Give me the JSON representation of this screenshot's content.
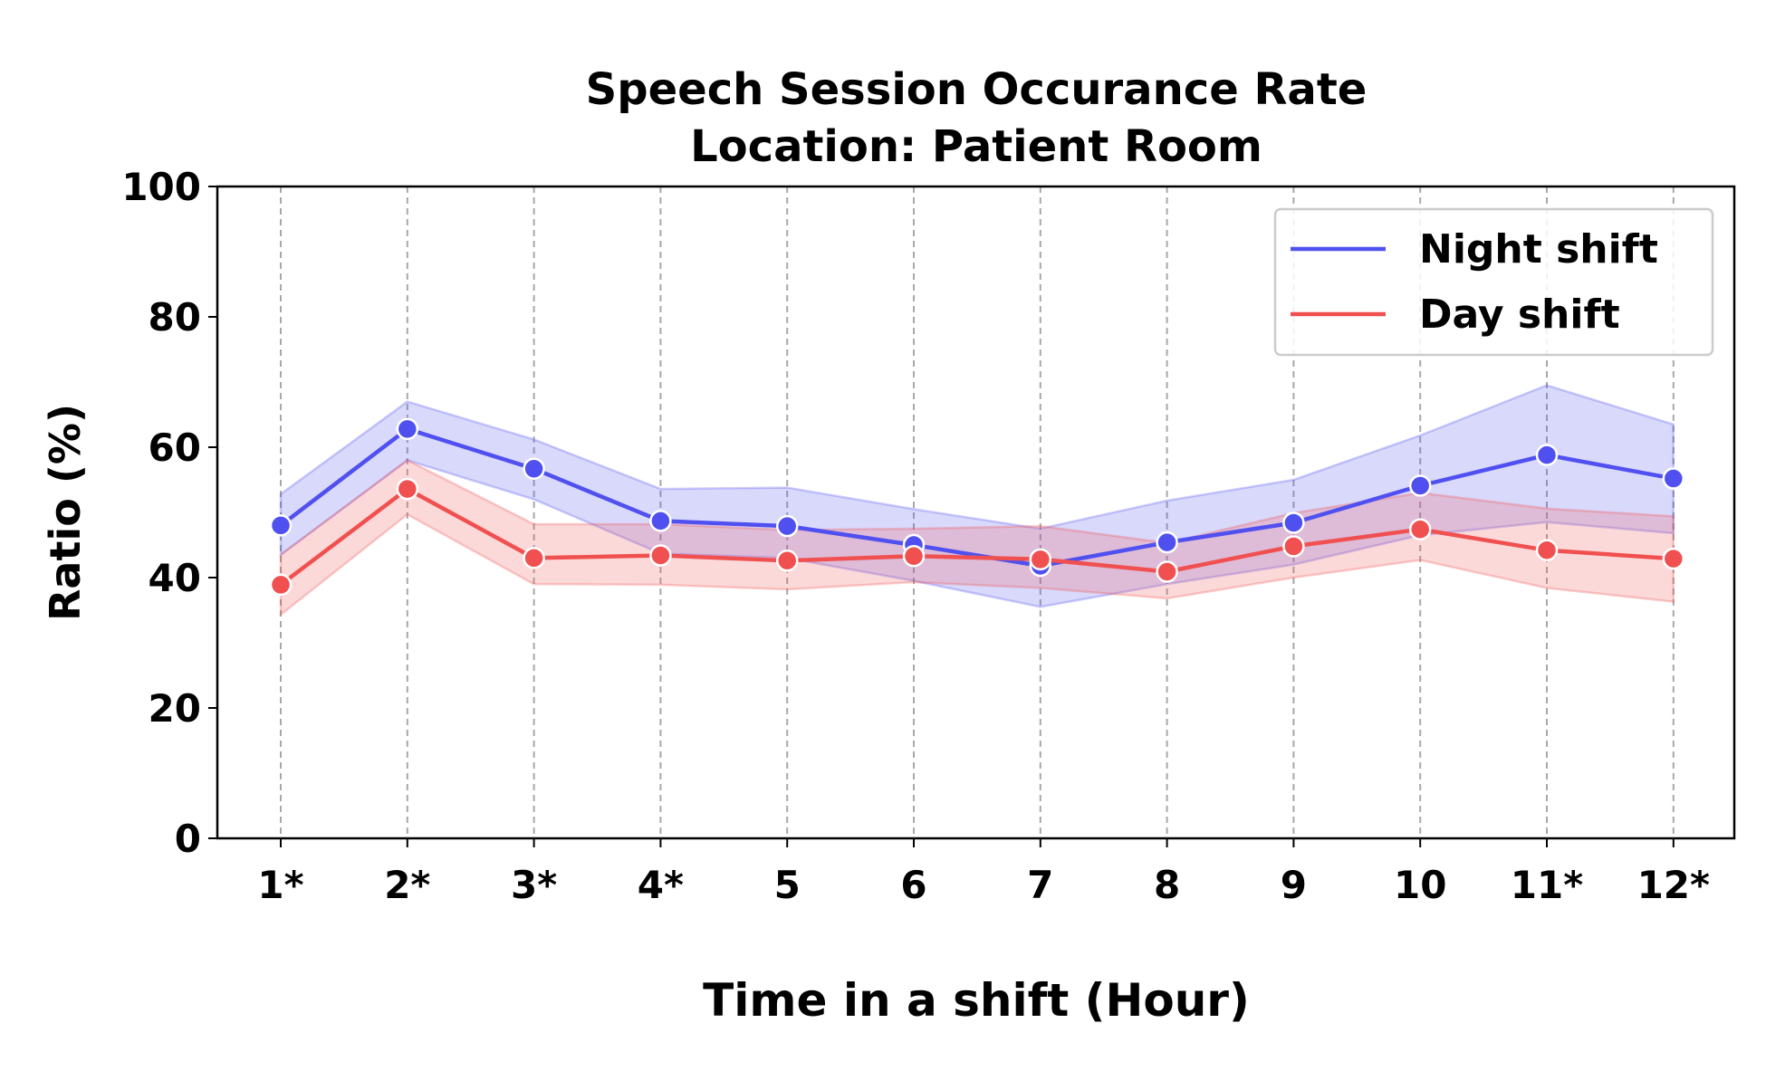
{
  "chart_data": {
    "type": "line",
    "title": [
      "Speech Session Occurance Rate",
      "Location: Patient Room"
    ],
    "xlabel": "Time in a shift (Hour)",
    "ylabel": "Ratio (%)",
    "ylim": [
      0,
      100
    ],
    "yticks": [
      "0",
      "20",
      "40",
      "60",
      "80",
      "100"
    ],
    "categories": [
      "1*",
      "2*",
      "3*",
      "4*",
      "5",
      "6",
      "7",
      "8",
      "9",
      "10",
      "11*",
      "12*"
    ],
    "grid": "vertical dashed",
    "legend_position": "top-right",
    "series": [
      {
        "name": "Night shift",
        "color": "#5050f0",
        "values": [
          48.0,
          62.8,
          56.7,
          48.7,
          47.9,
          45.0,
          41.8,
          45.4,
          48.4,
          54.1,
          58.8,
          55.2
        ],
        "lower": [
          43.5,
          58.0,
          52.0,
          43.7,
          43.0,
          39.5,
          35.5,
          39.0,
          42.0,
          46.5,
          48.5,
          46.8
        ],
        "upper": [
          52.8,
          67.0,
          61.2,
          53.6,
          53.8,
          50.5,
          47.5,
          51.8,
          55.0,
          61.8,
          69.5,
          63.5
        ]
      },
      {
        "name": "Day shift",
        "color": "#f05050",
        "values": [
          38.9,
          53.6,
          43.0,
          43.4,
          42.6,
          43.3,
          42.8,
          40.9,
          44.8,
          47.4,
          44.2,
          42.9
        ],
        "lower": [
          34.3,
          49.7,
          39.0,
          38.9,
          38.2,
          39.3,
          38.4,
          36.8,
          40.0,
          42.7,
          38.4,
          36.3
        ],
        "upper": [
          43.5,
          58.0,
          48.2,
          48.2,
          47.3,
          47.5,
          47.9,
          45.3,
          49.9,
          53.0,
          50.6,
          49.4
        ]
      }
    ]
  }
}
